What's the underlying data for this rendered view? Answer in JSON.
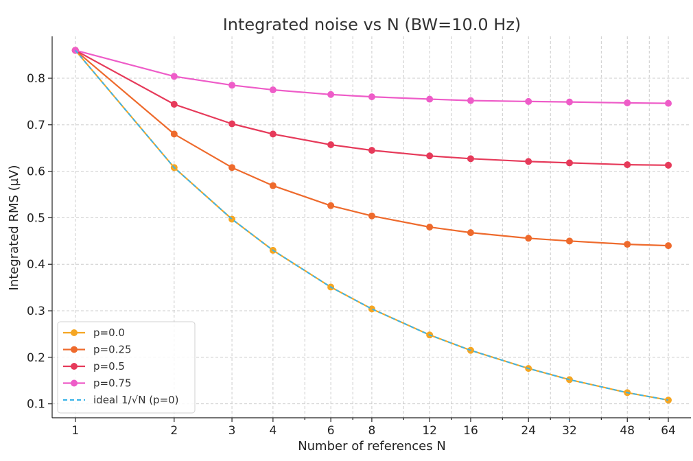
{
  "chart_data": {
    "type": "line",
    "title": "Integrated noise vs N (BW=10.0 Hz)",
    "xlabel": "Number of references N",
    "ylabel": "Integrated RMS (µV)",
    "xscale": "log2",
    "x": [
      1,
      2,
      3,
      4,
      6,
      8,
      12,
      16,
      24,
      32,
      48,
      64
    ],
    "x_ticks": [
      1,
      2,
      3,
      4,
      6,
      8,
      12,
      16,
      24,
      32,
      48,
      64
    ],
    "y_ticks": [
      0.1,
      0.2,
      0.3,
      0.4,
      0.5,
      0.6,
      0.7,
      0.8
    ],
    "y_tick_labels": [
      "0.1",
      "0.2",
      "0.3",
      "0.4",
      "0.5",
      "0.6",
      "0.7",
      "0.8"
    ],
    "xlim": [
      0.85,
      75
    ],
    "ylim": [
      0.07,
      0.89
    ],
    "grid": true,
    "legend_position": "bottom-left",
    "series": [
      {
        "name": "p=0.0",
        "color": "#F5A623",
        "style": "solid",
        "marker": true,
        "values": [
          0.86,
          0.608,
          0.497,
          0.43,
          0.351,
          0.304,
          0.248,
          0.215,
          0.176,
          0.152,
          0.124,
          0.108
        ]
      },
      {
        "name": "p=0.25",
        "color": "#EE6A2C",
        "style": "solid",
        "marker": true,
        "values": [
          0.86,
          0.68,
          0.608,
          0.569,
          0.526,
          0.504,
          0.48,
          0.468,
          0.456,
          0.45,
          0.443,
          0.44
        ]
      },
      {
        "name": "p=0.5",
        "color": "#E63A5A",
        "style": "solid",
        "marker": true,
        "values": [
          0.86,
          0.744,
          0.702,
          0.68,
          0.657,
          0.645,
          0.633,
          0.627,
          0.621,
          0.618,
          0.614,
          0.613
        ]
      },
      {
        "name": "p=0.75",
        "color": "#EE5CC8",
        "style": "solid",
        "marker": true,
        "values": [
          0.86,
          0.804,
          0.785,
          0.775,
          0.765,
          0.76,
          0.755,
          0.752,
          0.75,
          0.749,
          0.747,
          0.746
        ]
      },
      {
        "name": "ideal 1/√N (p=0)",
        "color": "#3BB4E8",
        "style": "dashed",
        "marker": false,
        "values": [
          0.86,
          0.608,
          0.497,
          0.43,
          0.351,
          0.304,
          0.248,
          0.215,
          0.176,
          0.152,
          0.124,
          0.108
        ]
      }
    ]
  }
}
